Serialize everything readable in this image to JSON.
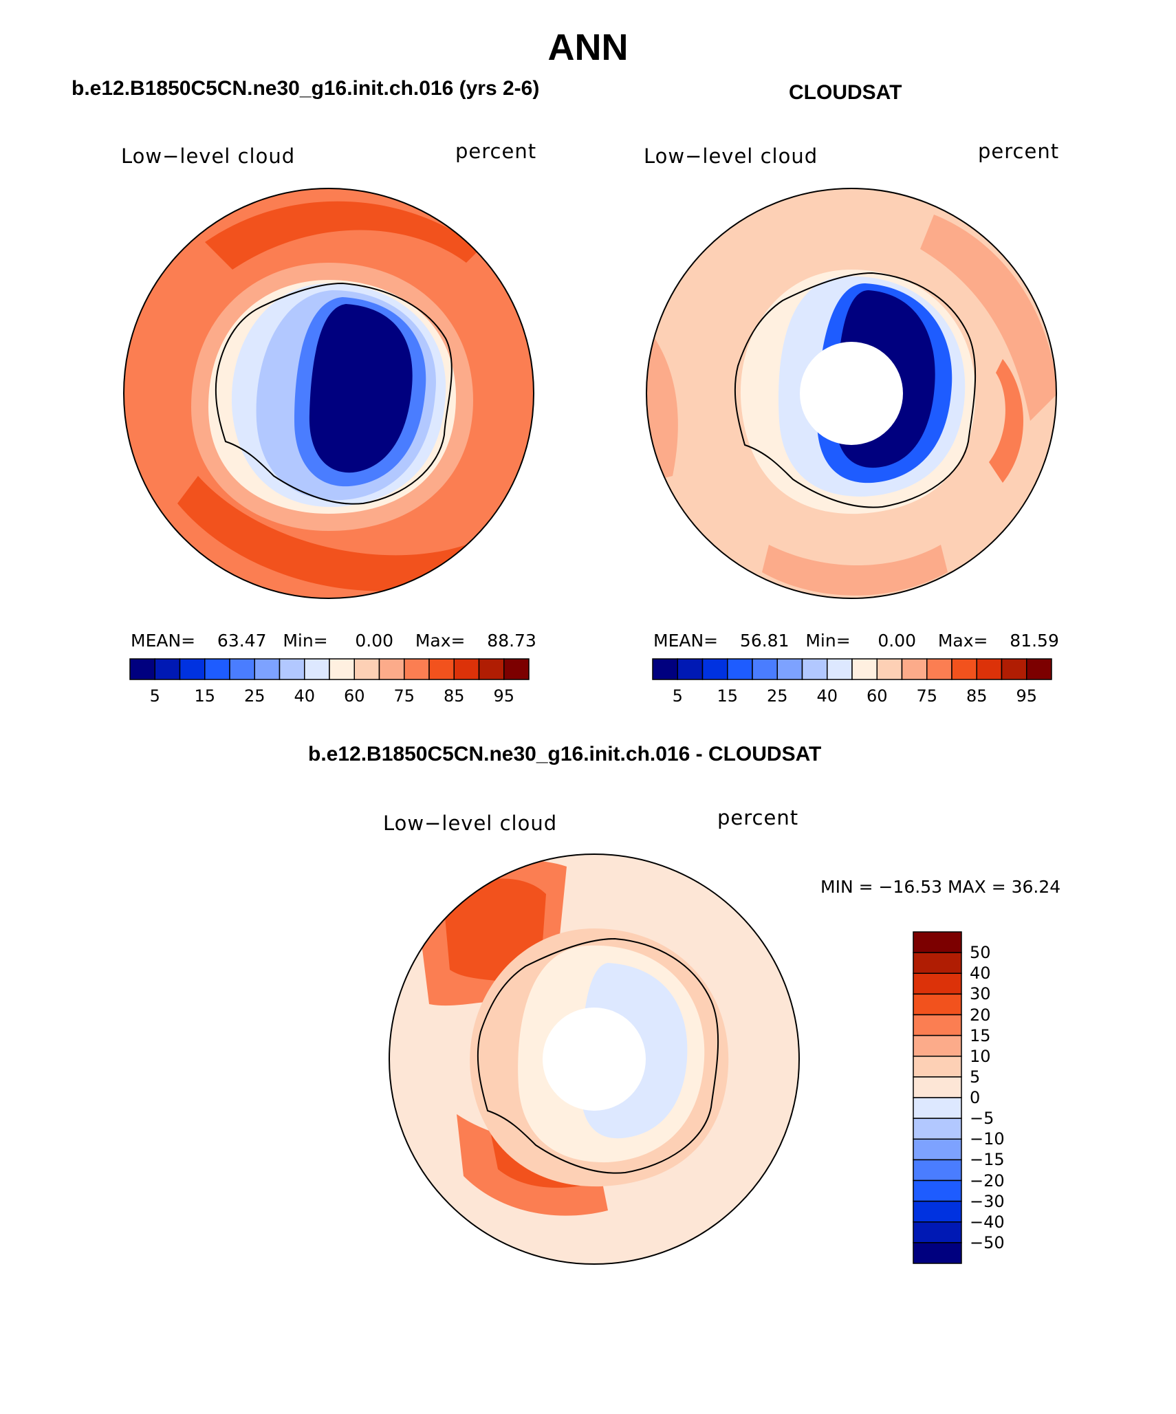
{
  "title": "ANN",
  "panels": [
    {
      "id": "model",
      "case_title": "b.e12.B1850C5CN.ne30_g16.init.ch.016 (yrs 2-6)",
      "variable": "Low−level cloud",
      "units": "percent",
      "stats": {
        "mean_label": "MEAN=",
        "mean": "63.47",
        "min_label": "Min=",
        "min": "0.00",
        "max_label": "Max=",
        "max": "88.73"
      }
    },
    {
      "id": "obs",
      "case_title": "CLOUDSAT",
      "variable": "Low−level cloud",
      "units": "percent",
      "stats": {
        "mean_label": "MEAN=",
        "mean": "56.81",
        "min_label": "Min=",
        "min": "0.00",
        "max_label": "Max=",
        "max": "81.59"
      }
    },
    {
      "id": "diff",
      "case_title": "b.e12.B1850C5CN.ne30_g16.init.ch.016 - CLOUDSAT",
      "variable": "Low−level cloud",
      "units": "percent",
      "stats": {
        "text": "MIN = −16.53 MAX =  36.24"
      }
    }
  ],
  "colorbar_abs": {
    "colors": [
      "#00007f",
      "#0019b4",
      "#0032e0",
      "#1e5cff",
      "#4a7dff",
      "#7da2ff",
      "#b2c8ff",
      "#dde8ff",
      "#fff0e0",
      "#fdd0b5",
      "#fcab8a",
      "#fb7e52",
      "#f2521d",
      "#dc3209",
      "#b01d03",
      "#7c0000"
    ],
    "labels": [
      "5",
      "15",
      "25",
      "40",
      "60",
      "75",
      "85",
      "95"
    ],
    "label_after_boxes": [
      1,
      3,
      5,
      7,
      9,
      11,
      13,
      15
    ]
  },
  "colorbar_diff": {
    "colors": [
      "#7c0000",
      "#b01d03",
      "#dc3209",
      "#f2521d",
      "#fb7e52",
      "#fcab8a",
      "#fdd0b5",
      "#fde6d6",
      "#dde8ff",
      "#b2c8ff",
      "#7da2ff",
      "#4a7dff",
      "#1e5cff",
      "#0032e0",
      "#0019b4",
      "#00007f"
    ],
    "labels": [
      "50",
      "40",
      "30",
      "20",
      "15",
      "10",
      "5",
      "0",
      "−5",
      "−10",
      "−15",
      "−20",
      "−30",
      "−40",
      "−50"
    ]
  }
}
